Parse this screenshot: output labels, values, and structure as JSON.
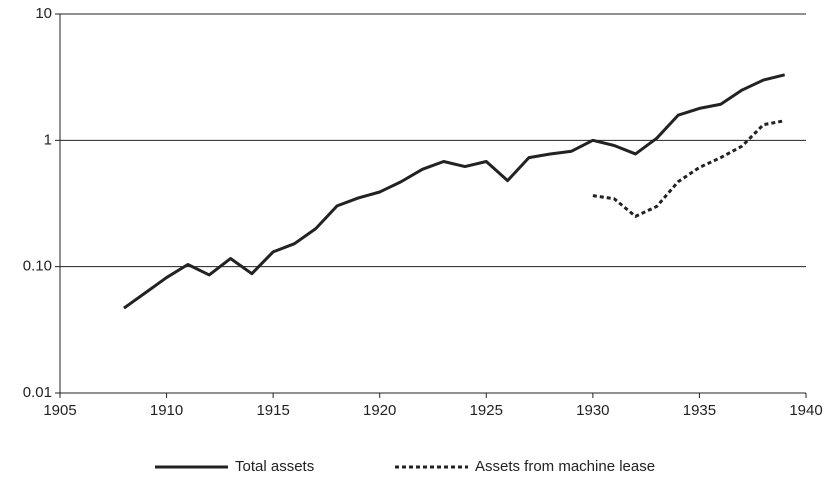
{
  "chart_data": {
    "type": "line",
    "yscale": "log",
    "grid": true,
    "legend": "bottom",
    "xlim": [
      1905,
      1940
    ],
    "xticks": [
      1905,
      1910,
      1915,
      1920,
      1925,
      1930,
      1935,
      1940
    ],
    "ylim": [
      0.01,
      10
    ],
    "yticks": [
      0.01,
      {
        "value": 0.1,
        "label": "0.10"
      },
      1,
      10
    ],
    "series": [
      {
        "name": "Total assets",
        "color": "#222222",
        "style": "solid",
        "x": [
          1908,
          1909,
          1910,
          1911,
          1912,
          1913,
          1914,
          1915,
          1916,
          1917,
          1918,
          1919,
          1920,
          1921,
          1922,
          1923,
          1924,
          1925,
          1926,
          1927,
          1928,
          1929,
          1930,
          1931,
          1932,
          1933,
          1934,
          1935,
          1936,
          1937,
          1938,
          1939
        ],
        "values": [
          0.047,
          0.062,
          0.082,
          0.104,
          0.086,
          0.116,
          0.088,
          0.131,
          0.152,
          0.2,
          0.303,
          0.35,
          0.39,
          0.47,
          0.59,
          0.68,
          0.62,
          0.68,
          0.48,
          0.73,
          0.78,
          0.82,
          1.0,
          0.91,
          0.78,
          1.04,
          1.58,
          1.79,
          1.93,
          2.5,
          3.0,
          3.3
        ]
      },
      {
        "name": "Assets from machine lease",
        "color": "#222222",
        "style": "dotted",
        "x": [
          1930,
          1931,
          1932,
          1933,
          1934,
          1935,
          1936,
          1937,
          1938,
          1939
        ],
        "values": [
          0.365,
          0.345,
          0.25,
          0.3,
          0.47,
          0.61,
          0.73,
          0.9,
          1.33,
          1.43
        ]
      }
    ]
  }
}
